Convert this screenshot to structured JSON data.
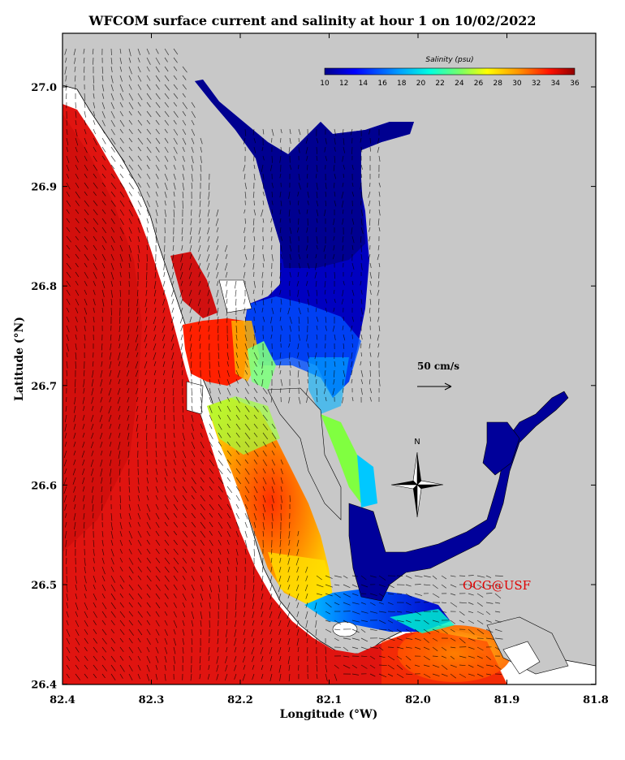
{
  "title": "WFCOM surface current and salinity at hour 1 on 10/02/2022",
  "axes": {
    "xlabel": "Longitude (°W)",
    "ylabel": "Latitude (°N)",
    "x_ticks": [
      "82.4",
      "82.3",
      "82.2",
      "82.1",
      "82.0",
      "81.9",
      "81.8"
    ],
    "y_ticks": [
      "27.0",
      "26.9",
      "26.8",
      "26.7",
      "26.6",
      "26.5",
      "26.4"
    ],
    "xlim": [
      82.4,
      81.8
    ],
    "ylim": [
      26.4,
      27.05
    ]
  },
  "colorbar": {
    "title": "Salinity (psu)",
    "ticks": [
      "10",
      "12",
      "14",
      "16",
      "18",
      "20",
      "22",
      "24",
      "26",
      "28",
      "30",
      "32",
      "34",
      "36"
    ],
    "range": [
      10,
      36
    ]
  },
  "scale_label": "50 cm/s",
  "compass_label": "N",
  "credit": "OCG@USF",
  "colors": {
    "land": "#c8c8c8",
    "gulf": "#e01010",
    "fresh": "#00008c",
    "credit": "#e00000"
  }
}
